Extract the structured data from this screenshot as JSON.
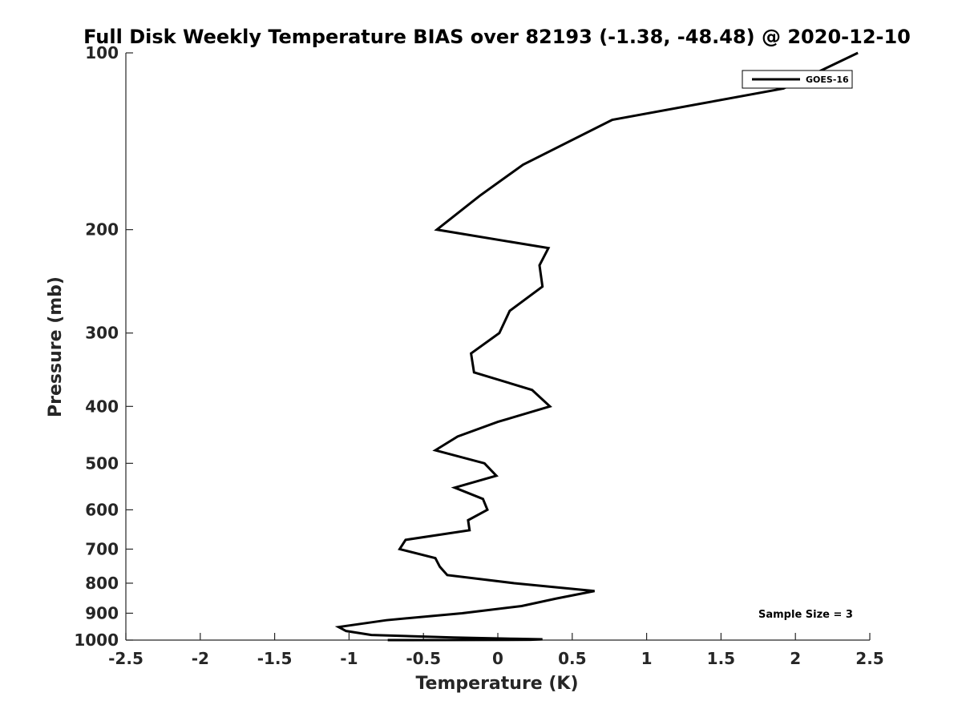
{
  "chart_data": {
    "type": "line",
    "title": "Full Disk Weekly Temperature BIAS over 82193 (-1.38, -48.48) @ 2020-12-10",
    "xlabel": "Temperature (K)",
    "ylabel": "Pressure (mb)",
    "xlim": [
      -2.5,
      2.5
    ],
    "ylim": [
      1000,
      100
    ],
    "yscale": "log",
    "y_reversed": true,
    "xticks": [
      -2.5,
      -2,
      -1.5,
      -1,
      -0.5,
      0,
      0.5,
      1,
      1.5,
      2,
      2.5
    ],
    "xtick_labels": [
      "-2.5",
      "-2",
      "-1.5",
      "-1",
      "-0.5",
      "0",
      "0.5",
      "1",
      "1.5",
      "2",
      "2.5"
    ],
    "yticks": [
      100,
      200,
      300,
      400,
      500,
      600,
      700,
      800,
      900,
      1000
    ],
    "ytick_labels": [
      "100",
      "200",
      "300",
      "400",
      "500",
      "600",
      "700",
      "800",
      "900",
      "1000"
    ],
    "grid": false,
    "legend_position": "top-right",
    "annotation": "Sample Size = 3",
    "series": [
      {
        "name": "GOES-16",
        "color": "#000000",
        "points": [
          {
            "x": 2.42,
            "y": 100
          },
          {
            "x": 1.92,
            "y": 115
          },
          {
            "x": 0.77,
            "y": 130
          },
          {
            "x": 0.17,
            "y": 155
          },
          {
            "x": -0.12,
            "y": 175
          },
          {
            "x": -0.41,
            "y": 200
          },
          {
            "x": 0.34,
            "y": 215
          },
          {
            "x": 0.28,
            "y": 230
          },
          {
            "x": 0.3,
            "y": 250
          },
          {
            "x": 0.08,
            "y": 275
          },
          {
            "x": 0.01,
            "y": 300
          },
          {
            "x": -0.18,
            "y": 325
          },
          {
            "x": -0.16,
            "y": 350
          },
          {
            "x": 0.23,
            "y": 375
          },
          {
            "x": 0.35,
            "y": 400
          },
          {
            "x": 0.0,
            "y": 425
          },
          {
            "x": -0.27,
            "y": 450
          },
          {
            "x": -0.42,
            "y": 475
          },
          {
            "x": -0.09,
            "y": 500
          },
          {
            "x": -0.01,
            "y": 525
          },
          {
            "x": -0.29,
            "y": 550
          },
          {
            "x": -0.1,
            "y": 575
          },
          {
            "x": -0.07,
            "y": 600
          },
          {
            "x": -0.2,
            "y": 625
          },
          {
            "x": -0.19,
            "y": 650
          },
          {
            "x": -0.62,
            "y": 675
          },
          {
            "x": -0.66,
            "y": 700
          },
          {
            "x": -0.42,
            "y": 725
          },
          {
            "x": -0.39,
            "y": 750
          },
          {
            "x": -0.34,
            "y": 775
          },
          {
            "x": 0.11,
            "y": 800
          },
          {
            "x": 0.65,
            "y": 825
          },
          {
            "x": 0.39,
            "y": 850
          },
          {
            "x": 0.16,
            "y": 875
          },
          {
            "x": -0.24,
            "y": 900
          },
          {
            "x": -0.75,
            "y": 925
          },
          {
            "x": -1.07,
            "y": 950
          },
          {
            "x": -1.02,
            "y": 965
          },
          {
            "x": -0.85,
            "y": 980
          },
          {
            "x": -0.3,
            "y": 990
          },
          {
            "x": 0.13,
            "y": 995
          },
          {
            "x": 0.3,
            "y": 997
          },
          {
            "x": 0.22,
            "y": 999
          },
          {
            "x": -0.74,
            "y": 1000
          }
        ]
      }
    ]
  }
}
